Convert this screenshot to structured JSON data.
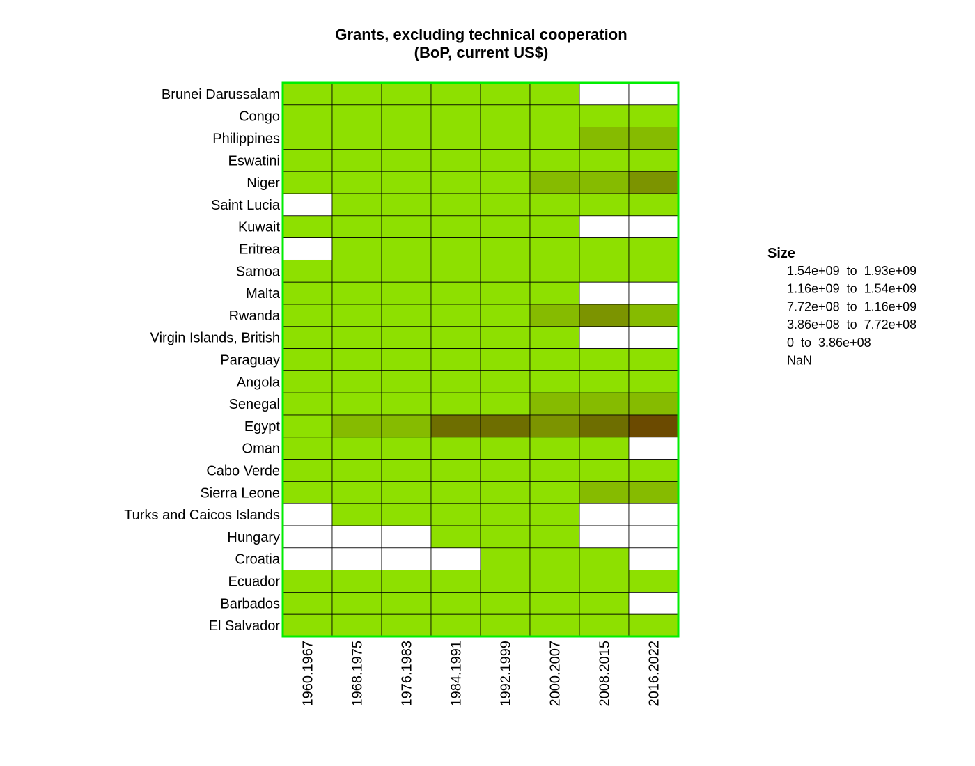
{
  "chart_data": {
    "type": "heatmap",
    "title_line1": "Grants, excluding technical cooperation",
    "title_line2": "(BoP, current US$)",
    "rows": [
      "Brunei Darussalam",
      "Congo",
      "Philippines",
      "Eswatini",
      "Niger",
      "Saint Lucia",
      "Kuwait",
      "Eritrea",
      "Samoa",
      "Malta",
      "Rwanda",
      "Virgin Islands, British",
      "Paraguay",
      "Angola",
      "Senegal",
      "Egypt",
      "Oman",
      "Cabo Verde",
      "Sierra Leone",
      "Turks and Caicos Islands",
      "Hungary",
      "Croatia",
      "Ecuador",
      "Barbados",
      "El Salvador"
    ],
    "columns": [
      "1960.1967",
      "1968.1975",
      "1976.1983",
      "1984.1991",
      "1992.1999",
      "2000.2007",
      "2008.2015",
      "2016.2022"
    ],
    "cells_bin_index": [
      [
        4,
        4,
        4,
        4,
        4,
        4,
        5,
        5
      ],
      [
        4,
        4,
        4,
        4,
        4,
        4,
        4,
        4
      ],
      [
        4,
        4,
        4,
        4,
        4,
        4,
        3,
        3
      ],
      [
        4,
        4,
        4,
        4,
        4,
        4,
        4,
        4
      ],
      [
        4,
        4,
        4,
        4,
        4,
        3,
        3,
        2
      ],
      [
        5,
        4,
        4,
        4,
        4,
        4,
        4,
        4
      ],
      [
        4,
        4,
        4,
        4,
        4,
        4,
        5,
        5
      ],
      [
        5,
        4,
        4,
        4,
        4,
        4,
        4,
        4
      ],
      [
        4,
        4,
        4,
        4,
        4,
        4,
        4,
        4
      ],
      [
        4,
        4,
        4,
        4,
        4,
        4,
        5,
        5
      ],
      [
        4,
        4,
        4,
        4,
        4,
        3,
        2,
        3
      ],
      [
        4,
        4,
        4,
        4,
        4,
        4,
        5,
        5
      ],
      [
        4,
        4,
        4,
        4,
        4,
        4,
        4,
        4
      ],
      [
        4,
        4,
        4,
        4,
        4,
        4,
        4,
        4
      ],
      [
        4,
        4,
        4,
        4,
        4,
        3,
        3,
        3
      ],
      [
        4,
        3,
        3,
        1,
        1,
        2,
        1,
        0
      ],
      [
        4,
        4,
        4,
        4,
        4,
        4,
        4,
        5
      ],
      [
        4,
        4,
        4,
        4,
        4,
        4,
        4,
        4
      ],
      [
        4,
        4,
        4,
        4,
        4,
        4,
        3,
        3
      ],
      [
        5,
        4,
        4,
        4,
        4,
        4,
        5,
        5
      ],
      [
        5,
        5,
        5,
        4,
        4,
        4,
        5,
        5
      ],
      [
        5,
        5,
        5,
        5,
        4,
        4,
        4,
        5
      ],
      [
        4,
        4,
        4,
        4,
        4,
        4,
        4,
        4
      ],
      [
        4,
        4,
        4,
        4,
        4,
        4,
        4,
        5
      ],
      [
        4,
        4,
        4,
        4,
        4,
        4,
        4,
        4
      ]
    ],
    "legend": {
      "title": "Size",
      "items": [
        {
          "label": "1.54e+09  to  1.93e+09",
          "color": "#6b4a00"
        },
        {
          "label": "1.16e+09  to  1.54e+09",
          "color": "#6e6e00"
        },
        {
          "label": "7.72e+08  to  1.16e+09",
          "color": "#7c9400"
        },
        {
          "label": "3.86e+08  to  7.72e+08",
          "color": "#86bb00"
        },
        {
          "label": "0  to  3.86e+08",
          "color": "#8ee000"
        },
        {
          "label": "NaN",
          "color": "#ffffff"
        }
      ]
    },
    "colors": {
      "border": "#00ee00",
      "cell_stroke": "#000000"
    }
  }
}
